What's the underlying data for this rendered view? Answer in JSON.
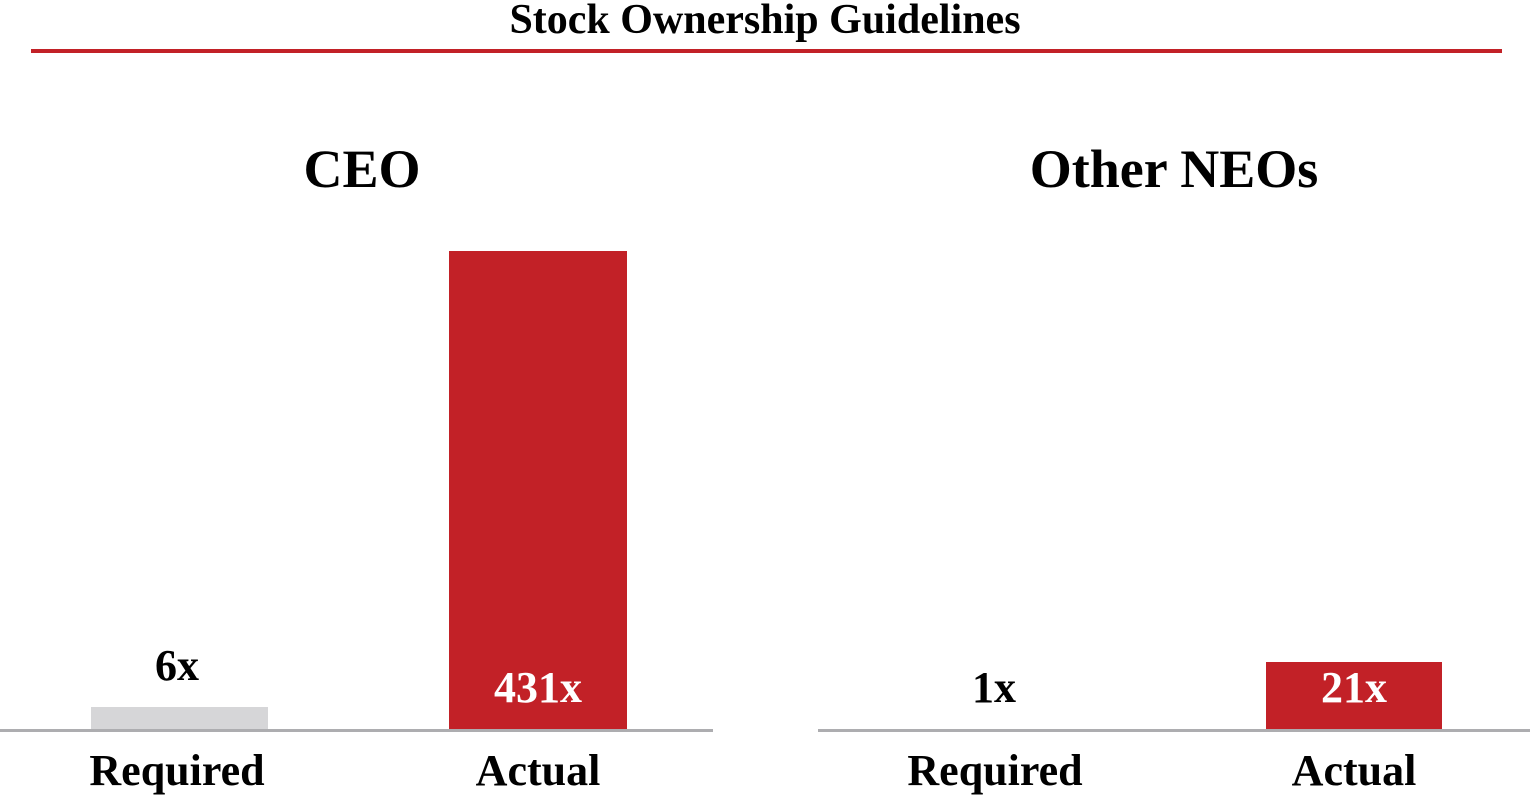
{
  "page": {
    "title": "Stock Ownership Guidelines"
  },
  "colors": {
    "accent_red": "#C22127",
    "required_bar_gray": "#D6D6D8",
    "axis_gray": "#ADADB0",
    "title_rule_red": "#C22127",
    "text_black": "#000000",
    "inside_bar_label_white": "#FFFFFF"
  },
  "chart_data": [
    {
      "type": "bar",
      "title": "CEO",
      "categories": [
        "Required",
        "Actual"
      ],
      "values": [
        6,
        431
      ],
      "value_labels": [
        "6x",
        "431x"
      ],
      "bar_colors": [
        "#D6D6D8",
        "#C22127"
      ],
      "xlabel": "",
      "ylabel": "",
      "ylim": [
        0,
        450
      ],
      "grid": false,
      "value_axis_hidden": true,
      "legend_position": "none"
    },
    {
      "type": "bar",
      "title": "Other NEOs",
      "categories": [
        "Required",
        "Actual"
      ],
      "values": [
        1,
        21
      ],
      "value_labels": [
        "1x",
        "21x"
      ],
      "bar_colors": [
        "none",
        "#C22127"
      ],
      "xlabel": "",
      "ylabel": "",
      "ylim": [
        0,
        22
      ],
      "grid": false,
      "value_axis_hidden": true,
      "legend_position": "none"
    }
  ]
}
